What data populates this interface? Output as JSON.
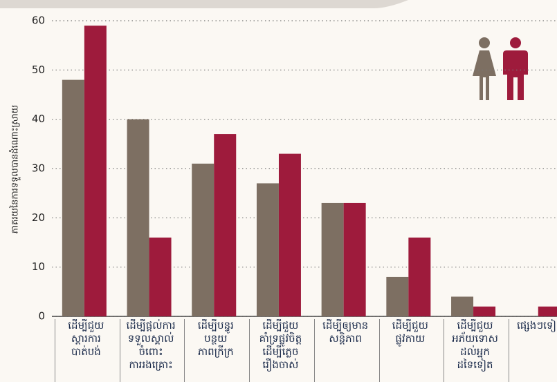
{
  "chart_data": {
    "type": "bar",
    "y_label": "ភាគរយនៃការទទួលបានដំណោះស្រាយ",
    "categories": [
      "ដើម្បីជួយ ស្តារការ បាត់បង់",
      "ដើម្បីផ្តល់ការ ទទួលស្គាល់ ចំពោះ ការរងគ្រោះ",
      "ដើម្បីបន្ធូរ បន្ថយ ភាពក្រីក្រ",
      "ដើម្បីជួយ គាំទ្រផ្លូវចិត្ត ដើម្បីភ្លេច រឿងចាស់",
      "ដើម្បីឲ្យមាន សន្តិភាព",
      "ដើម្បីជួយ ផ្លូវកាយ",
      "ដើម្បីជួយ អភ័យទោស ដល់អ្នក ដទៃទៀត",
      "ផ្សេងៗទៀត"
    ],
    "series": [
      {
        "color": "#7d6f62",
        "values": [
          48,
          40,
          31,
          27,
          23,
          8,
          4,
          0
        ]
      },
      {
        "color": "#9e1b3c",
        "values": [
          59,
          16,
          37,
          33,
          23,
          16,
          2,
          2
        ]
      }
    ],
    "ylim": [
      0,
      60
    ],
    "yticks": [
      0,
      10,
      20,
      30,
      40,
      50,
      60
    ],
    "grid": true
  }
}
